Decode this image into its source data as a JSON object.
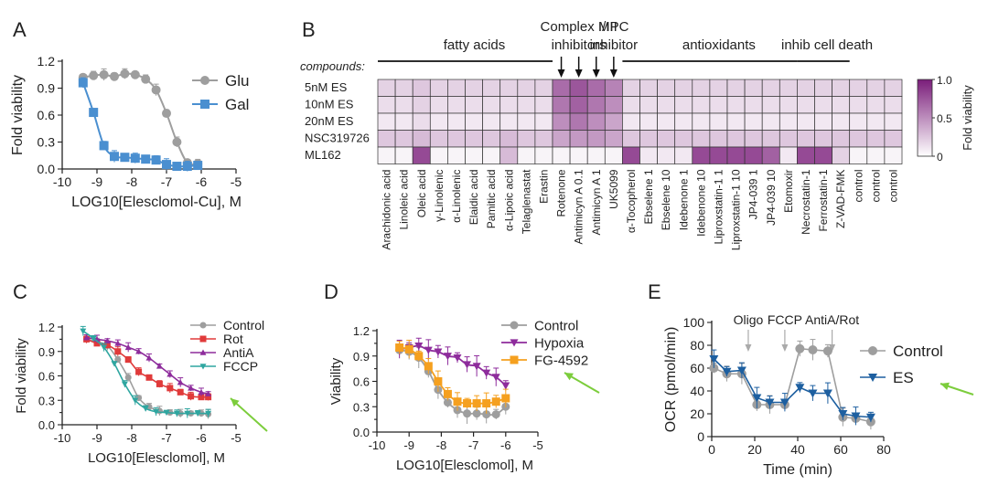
{
  "colors": {
    "glu": "#9e9e9e",
    "gal": "#4a8fd0",
    "control": "#9e9e9e",
    "rot": "#e03a3a",
    "antiA": "#8e2c9c",
    "fccp": "#2fa6a0",
    "hypoxia": "#8e2c9c",
    "fg4592": "#f5a01f",
    "es": "#1d5fa0",
    "arrow": "#7ccd3c",
    "heat_max": "#7a1d7a"
  },
  "chart_data": [
    {
      "panel": "A",
      "type": "line",
      "panel_label": "A",
      "xlabel": "LOG10[Elesclomol-Cu], M",
      "ylabel": "Fold viability",
      "xlim": [
        -10,
        -5
      ],
      "ylim": [
        0,
        1.2
      ],
      "xticks": [
        "-10",
        "-9",
        "-8",
        "-7",
        "-6",
        "-5"
      ],
      "yticks": [
        "0.0",
        "0.3",
        "0.6",
        "0.9",
        "1.2"
      ],
      "series": [
        {
          "name": "Glu",
          "color_key": "glu",
          "marker": "circle",
          "x": [
            -9.4,
            -9.1,
            -8.8,
            -8.5,
            -8.2,
            -7.9,
            -7.6,
            -7.3,
            -7.0,
            -6.7,
            -6.4,
            -6.1
          ],
          "y": [
            1.02,
            1.04,
            1.05,
            1.03,
            1.06,
            1.05,
            1.0,
            0.88,
            0.62,
            0.3,
            0.07,
            0.06
          ]
        },
        {
          "name": "Gal",
          "color_key": "gal",
          "marker": "square",
          "x": [
            -9.4,
            -9.1,
            -8.8,
            -8.5,
            -8.2,
            -7.9,
            -7.6,
            -7.3,
            -7.0,
            -6.7,
            -6.4,
            -6.1
          ],
          "y": [
            0.96,
            0.63,
            0.26,
            0.14,
            0.13,
            0.12,
            0.11,
            0.1,
            0.05,
            0.03,
            0.03,
            0.04
          ]
        }
      ]
    },
    {
      "panel": "B",
      "type": "heatmap",
      "panel_label": "B",
      "row_header": "compounds:",
      "rows": [
        "5nM ES",
        "10nM ES",
        "20nM ES",
        "NSC319726",
        "ML162"
      ],
      "columns": [
        "Arachidonic acid",
        "Linoleic acid",
        "Oleic acid",
        "γ-Linolenic",
        "α-Linolenic",
        "Elaidic acid",
        "Pamitic acid",
        "α-Lipoic acid",
        "Telaglenastat",
        "Erastin",
        "Rotenone",
        "Antimicyn A 0.1",
        "Antimicyn A 1",
        "UK5099",
        "α-Tocopherol",
        "Ebselene 1",
        "Ebselene 10",
        "Idebenone 1",
        "Idebenone 10",
        "Liproxstatin-1 1",
        "Liproxstatin-1 10",
        "JP4-039 1",
        "JP4-039 10",
        "Etomoxir",
        "Necrostatin-1",
        "Ferrostatin-1",
        "Z-VAD-FMK",
        "control",
        "control",
        "control"
      ],
      "values": [
        [
          0.2,
          0.2,
          0.25,
          0.2,
          0.2,
          0.2,
          0.2,
          0.2,
          0.2,
          0.2,
          0.65,
          0.75,
          0.65,
          0.55,
          0.2,
          0.2,
          0.2,
          0.2,
          0.2,
          0.2,
          0.2,
          0.2,
          0.2,
          0.2,
          0.2,
          0.2,
          0.2,
          0.2,
          0.2,
          0.2
        ],
        [
          0.15,
          0.15,
          0.2,
          0.15,
          0.15,
          0.15,
          0.15,
          0.15,
          0.15,
          0.15,
          0.6,
          0.7,
          0.6,
          0.5,
          0.15,
          0.15,
          0.15,
          0.15,
          0.15,
          0.15,
          0.15,
          0.15,
          0.15,
          0.15,
          0.15,
          0.15,
          0.15,
          0.15,
          0.15,
          0.15
        ],
        [
          0.1,
          0.1,
          0.15,
          0.1,
          0.1,
          0.1,
          0.1,
          0.1,
          0.1,
          0.1,
          0.5,
          0.6,
          0.5,
          0.4,
          0.1,
          0.1,
          0.1,
          0.1,
          0.1,
          0.1,
          0.1,
          0.1,
          0.1,
          0.1,
          0.1,
          0.1,
          0.1,
          0.1,
          0.1,
          0.1
        ],
        [
          0.25,
          0.25,
          0.3,
          0.25,
          0.25,
          0.25,
          0.25,
          0.3,
          0.25,
          0.25,
          0.4,
          0.45,
          0.45,
          0.4,
          0.25,
          0.25,
          0.25,
          0.25,
          0.25,
          0.25,
          0.25,
          0.25,
          0.25,
          0.25,
          0.25,
          0.25,
          0.25,
          0.25,
          0.25,
          0.25
        ],
        [
          0.05,
          0.05,
          0.8,
          0.05,
          0.05,
          0.05,
          0.05,
          0.3,
          0.05,
          0.05,
          0.05,
          0.05,
          0.05,
          0.05,
          0.8,
          0.1,
          0.1,
          0.1,
          0.8,
          0.8,
          0.8,
          0.8,
          0.7,
          0.1,
          0.8,
          0.8,
          0.2,
          0.05,
          0.05,
          0.05
        ]
      ],
      "colorbar": {
        "label": "Fold viability",
        "ticks": [
          "1.0",
          "0.5",
          "0"
        ],
        "range": [
          0,
          1
        ]
      },
      "groups": [
        {
          "label": "fatty acids",
          "cols": [
            0,
            9
          ]
        },
        {
          "label": "antioxidants",
          "cols": [
            14,
            23
          ]
        },
        {
          "label": "inhib cell death",
          "cols": [
            24,
            26
          ]
        }
      ],
      "annotations": [
        {
          "label": "Complex I/III",
          "line2": "inhibitors",
          "cols": [
            10,
            12
          ]
        },
        {
          "label": "MPC",
          "line2": "inhibitor",
          "cols": [
            13,
            13
          ]
        }
      ]
    },
    {
      "panel": "C",
      "type": "line",
      "panel_label": "C",
      "xlabel": "LOG10[Elesclomol], M",
      "ylabel": "Fold viability",
      "xlim": [
        -10,
        -5
      ],
      "ylim": [
        0,
        1.2
      ],
      "xticks": [
        "-10",
        "-9",
        "-8",
        "-7",
        "-6",
        "-5"
      ],
      "yticks": [
        "0.0",
        "0.15",
        "0.3",
        "0.45",
        "0.6",
        "0.75",
        "0.9",
        "1.05",
        "1.2"
      ],
      "ytick_labels_shown": [
        "0.0",
        "0.3",
        "0.6",
        "0.9",
        "1.2"
      ],
      "series": [
        {
          "name": "Control",
          "color_key": "control",
          "marker": "circle",
          "x": [
            -9.3,
            -9.0,
            -8.7,
            -8.4,
            -8.1,
            -7.8,
            -7.5,
            -7.2,
            -6.9,
            -6.6,
            -6.3,
            -6.0,
            -5.8
          ],
          "y": [
            1.05,
            1.02,
            0.97,
            0.8,
            0.58,
            0.33,
            0.22,
            0.17,
            0.15,
            0.14,
            0.14,
            0.14,
            0.13
          ]
        },
        {
          "name": "Rot",
          "color_key": "rot",
          "marker": "square",
          "x": [
            -9.3,
            -9.0,
            -8.7,
            -8.4,
            -8.1,
            -7.8,
            -7.5,
            -7.2,
            -6.9,
            -6.6,
            -6.3,
            -6.0,
            -5.8
          ],
          "y": [
            1.05,
            1.0,
            0.98,
            0.9,
            0.8,
            0.65,
            0.58,
            0.5,
            0.45,
            0.4,
            0.35,
            0.34,
            0.34
          ]
        },
        {
          "name": "AntiA",
          "color_key": "antiA",
          "marker": "triangle",
          "x": [
            -9.3,
            -9.0,
            -8.7,
            -8.4,
            -8.1,
            -7.8,
            -7.5,
            -7.2,
            -6.9,
            -6.6,
            -6.3,
            -6.0,
            -5.8
          ],
          "y": [
            1.07,
            1.05,
            1.03,
            1.0,
            0.95,
            0.9,
            0.82,
            0.72,
            0.62,
            0.52,
            0.45,
            0.4,
            0.38
          ]
        },
        {
          "name": "FCCP",
          "color_key": "fccp",
          "marker": "triangle-down",
          "x": [
            -9.4,
            -9.1,
            -8.8,
            -8.5,
            -8.2,
            -7.9,
            -7.6,
            -7.3,
            -7.0,
            -6.7,
            -6.4,
            -6.1,
            -5.8
          ],
          "y": [
            1.15,
            1.06,
            0.95,
            0.75,
            0.5,
            0.3,
            0.2,
            0.16,
            0.15,
            0.14,
            0.14,
            0.14,
            0.14
          ]
        }
      ]
    },
    {
      "panel": "D",
      "type": "line",
      "panel_label": "D",
      "xlabel": "LOG10[Elesclomol], M",
      "ylabel": "Viability",
      "xlim": [
        -10,
        -5
      ],
      "ylim": [
        0,
        1.2
      ],
      "xticks": [
        "-10",
        "-9",
        "-8",
        "-7",
        "-6",
        "-5"
      ],
      "yticks": [
        "0.0",
        "0.15",
        "0.3",
        "0.45",
        "0.6",
        "0.75",
        "0.9",
        "1.05",
        "1.2"
      ],
      "ytick_labels_shown": [
        "0.0",
        "0.3",
        "0.6",
        "0.9",
        "1.2"
      ],
      "series": [
        {
          "name": "Control",
          "color_key": "control",
          "marker": "circle",
          "x": [
            -9.3,
            -9.0,
            -8.7,
            -8.4,
            -8.1,
            -7.8,
            -7.5,
            -7.2,
            -6.9,
            -6.6,
            -6.3,
            -6.0
          ],
          "y": [
            0.97,
            0.95,
            0.88,
            0.72,
            0.5,
            0.35,
            0.26,
            0.22,
            0.22,
            0.21,
            0.21,
            0.3
          ]
        },
        {
          "name": "Hypoxia",
          "color_key": "hypoxia",
          "marker": "triangle-down",
          "x": [
            -9.3,
            -9.0,
            -8.7,
            -8.4,
            -8.1,
            -7.8,
            -7.5,
            -7.2,
            -6.9,
            -6.6,
            -6.3,
            -6.0
          ],
          "y": [
            0.98,
            1.0,
            1.02,
            0.97,
            0.95,
            0.9,
            0.88,
            0.8,
            0.78,
            0.7,
            0.65,
            0.55
          ]
        },
        {
          "name": "FG-4592",
          "color_key": "fg4592",
          "marker": "square",
          "x": [
            -9.3,
            -9.0,
            -8.7,
            -8.4,
            -8.1,
            -7.8,
            -7.5,
            -7.2,
            -6.9,
            -6.6,
            -6.3,
            -6.0
          ],
          "y": [
            1.0,
            0.98,
            0.9,
            0.78,
            0.6,
            0.45,
            0.36,
            0.34,
            0.34,
            0.34,
            0.36,
            0.4
          ]
        }
      ]
    },
    {
      "panel": "E",
      "type": "line",
      "panel_label": "E",
      "xlabel": "Time (min)",
      "ylabel": "OCR (pmol/min)",
      "xlim": [
        0,
        80
      ],
      "ylim": [
        0,
        100
      ],
      "xticks": [
        "0",
        "20",
        "40",
        "60",
        "80"
      ],
      "yticks": [
        "0",
        "20",
        "40",
        "60",
        "80",
        "100"
      ],
      "injections": [
        {
          "label": "Oligo",
          "x": 17
        },
        {
          "label": "FCCP",
          "x": 34
        },
        {
          "label": "AntiA/Rot",
          "x": 56
        }
      ],
      "series": [
        {
          "name": "Control",
          "color_key": "control",
          "marker": "circle",
          "x": [
            1,
            7,
            14,
            21,
            27,
            34,
            41,
            47,
            54,
            61,
            67,
            74
          ],
          "y": [
            60,
            55,
            55,
            28,
            28,
            28,
            77,
            76,
            75,
            17,
            16,
            13
          ]
        },
        {
          "name": "ES",
          "color_key": "es",
          "marker": "triangle-down",
          "x": [
            1,
            7,
            14,
            21,
            27,
            34,
            41,
            47,
            54,
            61,
            67,
            74
          ],
          "y": [
            68,
            57,
            58,
            34,
            30,
            30,
            43,
            38,
            38,
            20,
            18,
            17
          ]
        }
      ]
    }
  ]
}
